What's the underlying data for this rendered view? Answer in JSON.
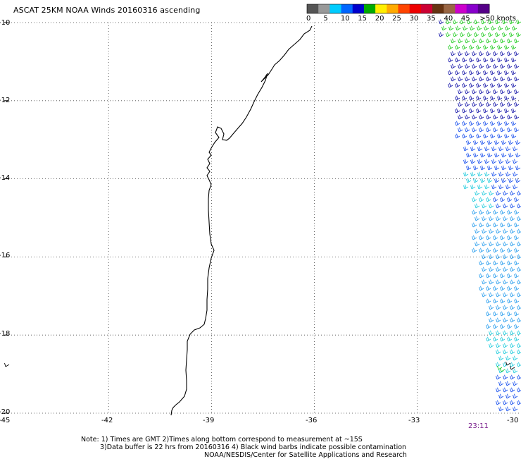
{
  "title": "ASCAT 25KM NOAA Winds 20160316 ascending",
  "colorbar": {
    "labels": [
      "0",
      "5",
      "10",
      "15",
      "20",
      "25",
      "30",
      "35",
      "40",
      "45",
      ">50 knots"
    ],
    "colors": [
      "#555555",
      "#999999",
      "#00ccff",
      "#0066ff",
      "#0000cc",
      "#00aa00",
      "#ffee00",
      "#ffaa00",
      "#ff4400",
      "#ee0000",
      "#cc0033",
      "#663311",
      "#996644",
      "#cc00cc",
      "#8800cc",
      "#550088"
    ]
  },
  "map": {
    "lon_range": [
      -45,
      -30
    ],
    "lat_range": [
      -20,
      -10
    ],
    "lon_ticks": [
      -42,
      -39,
      -36,
      -33
    ],
    "lat_ticks": [
      -12,
      -14,
      -16,
      -18
    ],
    "corner_labels": {
      "top_left": "-10",
      "bottom_left": "-20",
      "bottom_left_lon": "-45",
      "bottom_right_lon": "-30"
    },
    "grid": "dotted",
    "coastline_color": "#000000"
  },
  "timestamp": "23:11",
  "notes": [
    "Note: 1) Times are GMT 2)Times along bottom correspond to measurement at ~15S",
    "3)Data buffer is 22 hrs from 20160316 4) Black wind barbs indicate possible contamination",
    "NOAA/NESDIS/Center for Satellite Applications and Research"
  ],
  "wind_colors": {
    "green": "#22cc22",
    "dark_blue": "#1a1aaa",
    "blue": "#1f55ee",
    "light_blue": "#2ea0ee",
    "cyan": "#22ccdd",
    "contaminated": "#000000"
  }
}
